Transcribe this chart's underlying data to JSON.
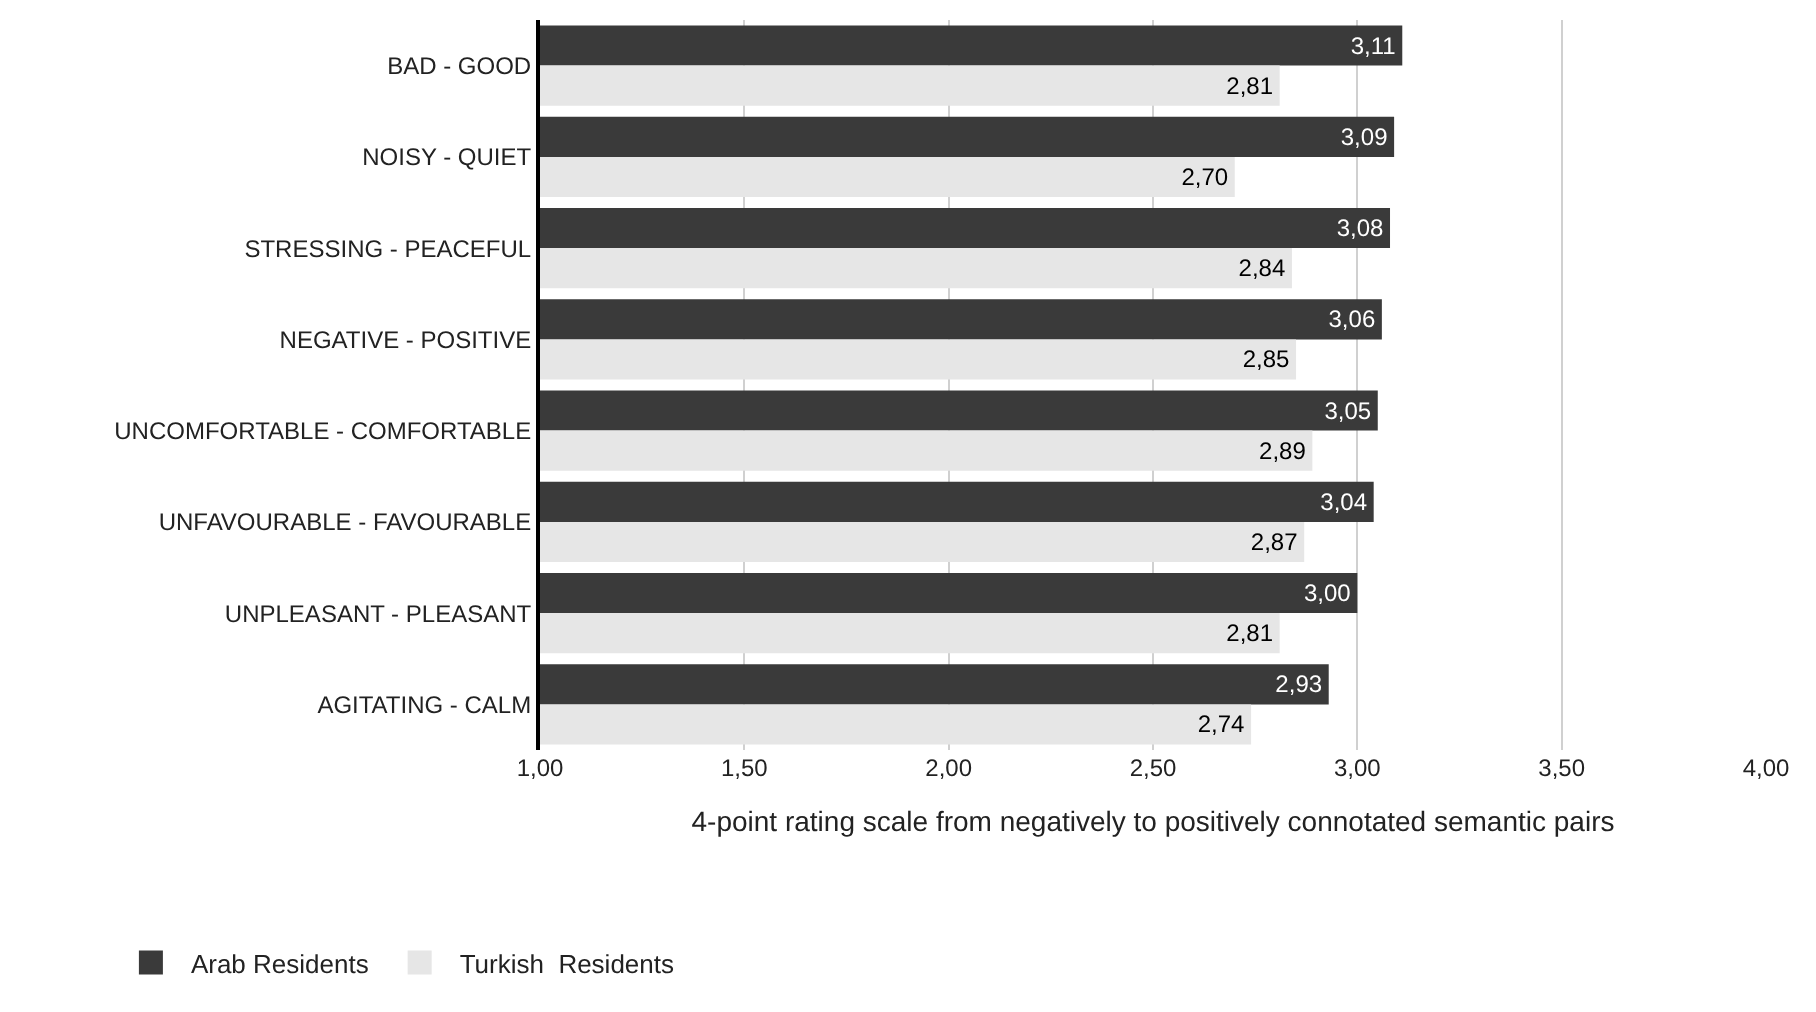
{
  "chart_data": {
    "type": "bar",
    "orientation": "horizontal",
    "xlabel": "4-point rating scale from negatively to positively connotated semantic pairs",
    "categories": [
      "BAD - GOOD",
      "NOISY - QUIET",
      "STRESSING - PEACEFUL",
      "NEGATIVE - POSITIVE",
      "UNCOMFORTABLE - COMFORTABLE",
      "UNFAVOURABLE - FAVOURABLE",
      "UNPLEASANT - PLEASANT",
      "AGITATING - CALM"
    ],
    "series": [
      {
        "name": "Arab Residents",
        "color": "#3a3a3a",
        "values": [
          3.11,
          3.09,
          3.08,
          3.06,
          3.05,
          3.04,
          3.0,
          2.93
        ],
        "value_labels": [
          "3,11",
          "3,09",
          "3,08",
          "3,06",
          "3,05",
          "3,04",
          "3,00",
          "2,93"
        ]
      },
      {
        "name": "Turkish  Residents",
        "color": "#e6e6e6",
        "values": [
          2.81,
          2.7,
          2.84,
          2.85,
          2.89,
          2.87,
          2.81,
          2.74
        ],
        "value_labels": [
          "2,81",
          "2,70",
          "2,84",
          "2,85",
          "2,89",
          "2,87",
          "2,81",
          "2,74"
        ]
      }
    ],
    "xlim": [
      1,
      4
    ],
    "xticks": [
      {
        "value": 1,
        "label": "1,00"
      },
      {
        "value": 1.5,
        "label": "1,50"
      },
      {
        "value": 2,
        "label": "2,00"
      },
      {
        "value": 2.5,
        "label": "2,50"
      },
      {
        "value": 3,
        "label": "3,00"
      },
      {
        "value": 3.5,
        "label": "3,50"
      },
      {
        "value": 4,
        "label": "4,00"
      }
    ],
    "grid": "x",
    "legend": "bottom left"
  }
}
